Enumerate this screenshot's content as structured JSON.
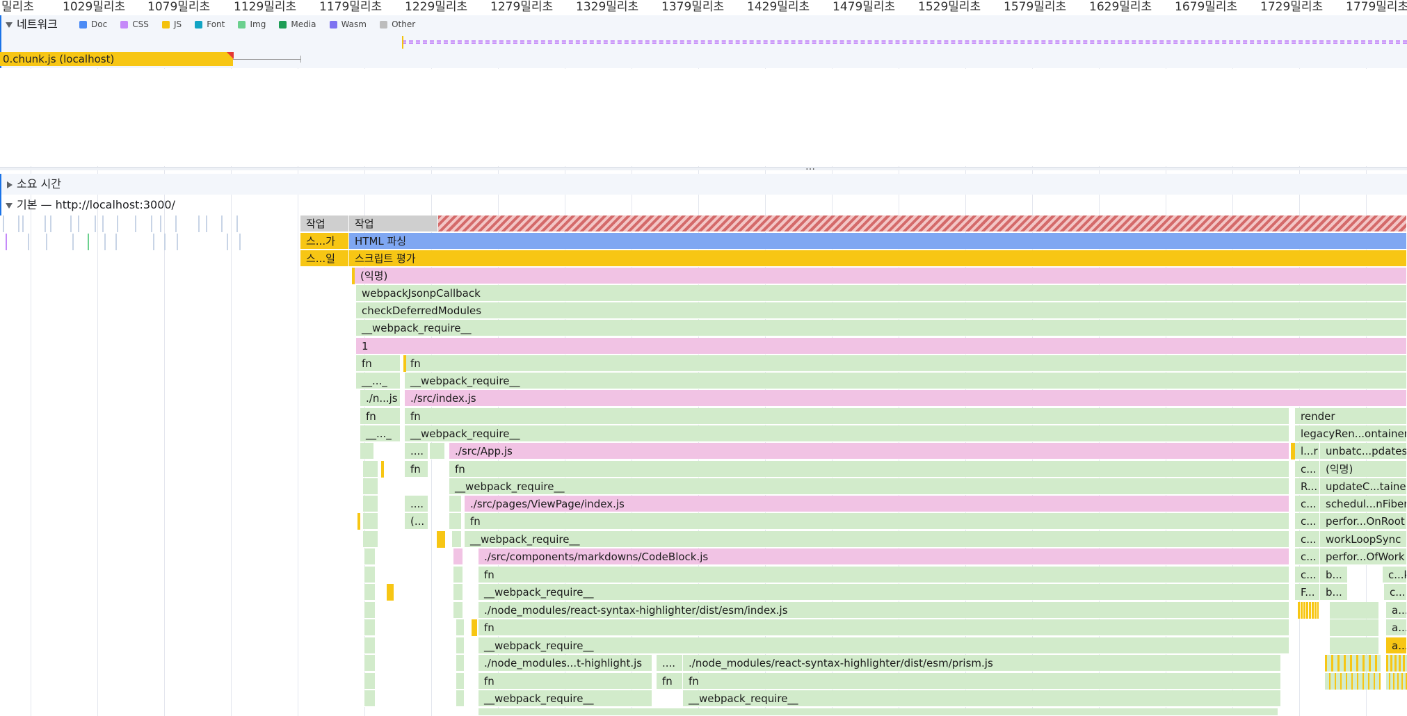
{
  "ruler": {
    "ticks": [
      "밀리초",
      "1029밀리초",
      "1079밀리초",
      "1129밀리초",
      "1179밀리초",
      "1229밀리초",
      "1279밀리초",
      "1329밀리초",
      "1379밀리초",
      "1429밀리초",
      "1479밀리초",
      "1529밀리초",
      "1579밀리초",
      "1629밀리초",
      "1679밀리초",
      "1729밀리초",
      "1779밀리초"
    ]
  },
  "network": {
    "title": "네트워크",
    "legend": [
      {
        "label": "Doc",
        "color": "#4c8bf5"
      },
      {
        "label": "CSS",
        "color": "#c58af9"
      },
      {
        "label": "JS",
        "color": "#f4c20d"
      },
      {
        "label": "Font",
        "color": "#12a4c4"
      },
      {
        "label": "Img",
        "color": "#6bd08e"
      },
      {
        "label": "Media",
        "color": "#1e9d56"
      },
      {
        "label": "Wasm",
        "color": "#7e73f1"
      },
      {
        "label": "Other",
        "color": "#bdbdbd"
      }
    ],
    "request_label": "0.chunk.js (localhost)",
    "divider_glyph": "…"
  },
  "timings": {
    "title": "소요 시간"
  },
  "main": {
    "title": "기본 — http://localhost:3000/",
    "task_left": "작업",
    "task_right": "작업",
    "parse_short": "스...가",
    "parse_label": "HTML 파싱",
    "eval_short": "스...일",
    "eval_label": "스크립트 평가",
    "rows": [
      {
        "label": "(익명)"
      },
      {
        "label": "webpackJsonpCallback"
      },
      {
        "label": "checkDeferredModules"
      },
      {
        "label": "__webpack_require__"
      },
      {
        "label": "1"
      }
    ],
    "fn_short": "fn",
    "wr_short": "__..._",
    "n_js": "./n...js",
    "dots": "....",
    "paren": "(...",
    "src_index": "./src/index.js",
    "webpack_require": "__webpack_require__",
    "app_js": "./src/App.js",
    "viewpage": "./src/pages/ViewPage/index.js",
    "codeblock": "./src/components/markdowns/CodeBlock.js",
    "rsh_index": "./node_modules/react-syntax-highlighter/dist/esm/index.js",
    "t_highlight": "./node_modules...t-highlight.js",
    "prism": "./node_modules/react-syntax-highlighter/dist/esm/prism.js",
    "right_col": [
      {
        "a": "render",
        "b": ""
      },
      {
        "a": "legacyRen...ontainer",
        "b": ""
      },
      {
        "a": "l...r",
        "b": "unbatc...pdates"
      },
      {
        "a": "c...",
        "b": "(익명)"
      },
      {
        "a": "R...",
        "b": "updateC...tainer"
      },
      {
        "a": "c...",
        "b": "schedul...nFiber"
      },
      {
        "a": "c...",
        "b": "perfor...OnRoot"
      },
      {
        "a": "c...",
        "b": "workLoopSync"
      },
      {
        "a": "c...",
        "b": "perfor...OfWork"
      },
      {
        "a": "c...",
        "b": "b...",
        "c": "c...k"
      },
      {
        "a": "F...",
        "b": "b...",
        "c": "c..."
      },
      {
        "a": "",
        "b": "",
        "c": "a..."
      },
      {
        "a": "",
        "b": "",
        "c": "a..."
      },
      {
        "a": "",
        "b": "",
        "c": "a..."
      }
    ]
  }
}
